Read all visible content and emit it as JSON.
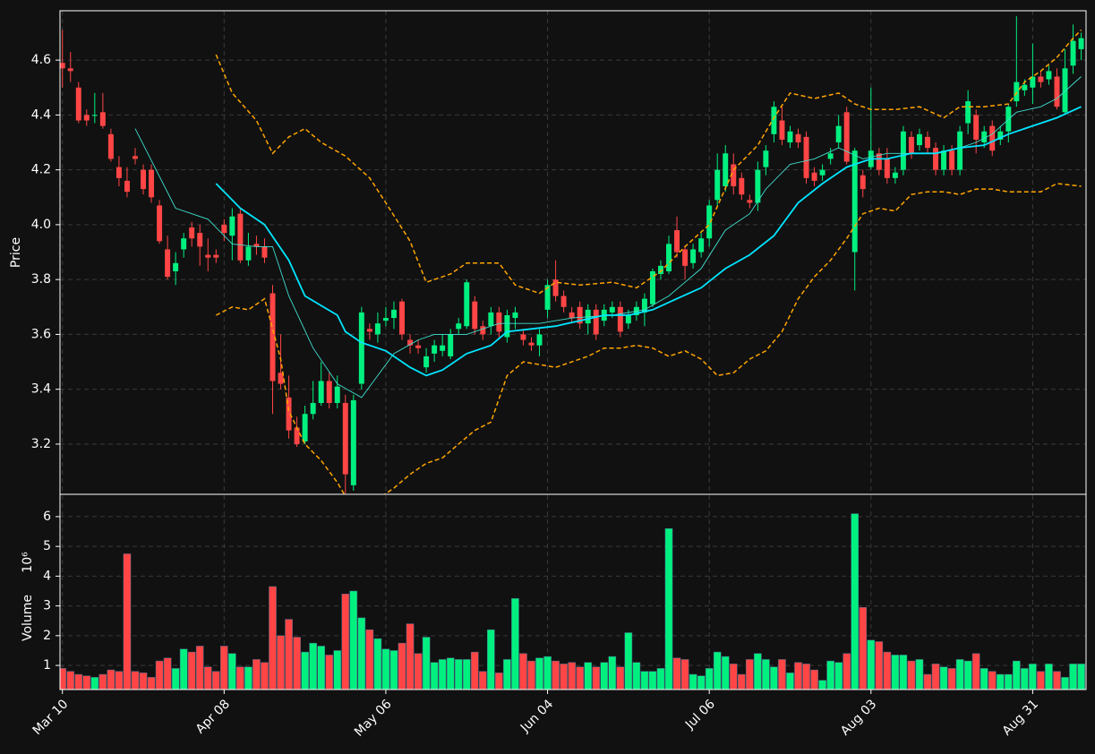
{
  "chart_data": [
    {
      "type": "candlestick",
      "y_label": "Price",
      "up_color": "#00f080",
      "down_color": "#ff4545",
      "grid": true,
      "xlim": [
        -0.3,
        126.6
      ],
      "ylim": [
        3.017,
        4.78
      ],
      "yticks": [
        3.2,
        3.4,
        3.6,
        3.8,
        {
          "value": 4,
          "label": "4.0"
        },
        4.2,
        4.4,
        4.6
      ],
      "open": [
        4.59,
        4.57,
        4.5,
        4.4,
        4.4,
        4.41,
        4.33,
        4.21,
        4.16,
        4.25,
        4.2,
        4.2,
        4.07,
        3.91,
        3.83,
        3.91,
        3.99,
        3.97,
        3.89,
        3.89,
        4.0,
        3.96,
        4.04,
        3.87,
        3.93,
        3.92,
        3.75,
        3.46,
        3.37,
        3.26,
        3.21,
        3.31,
        3.35,
        3.43,
        3.35,
        3.35,
        3.05,
        3.42,
        3.62,
        3.6,
        3.65,
        3.66,
        3.72,
        3.58,
        3.56,
        3.48,
        3.53,
        3.54,
        3.52,
        3.62,
        3.63,
        3.72,
        3.63,
        3.63,
        3.68,
        3.59,
        3.66,
        3.6,
        3.57,
        3.56,
        3.69,
        3.8,
        3.74,
        3.68,
        3.7,
        3.64,
        3.69,
        3.65,
        3.68,
        3.7,
        3.64,
        3.67,
        3.68,
        3.71,
        3.82,
        3.83,
        3.98,
        3.91,
        3.86,
        3.9,
        3.95,
        4.09,
        4.14,
        4.22,
        4.17,
        4.09,
        4.08,
        4.21,
        4.33,
        4.38,
        4.3,
        4.33,
        4.32,
        4.19,
        4.18,
        4.24,
        4.3,
        4.41,
        3.9,
        4.18,
        4.21,
        4.26,
        4.24,
        4.17,
        4.2,
        4.32,
        4.29,
        4.32,
        4.28,
        4.2,
        4.27,
        4.2,
        4.37,
        4.4,
        4.3,
        4.36,
        4.31,
        4.34,
        4.45,
        4.49,
        4.5,
        4.54,
        4.53,
        4.54,
        4.41,
        4.58,
        4.64
      ],
      "high": [
        4.71,
        4.63,
        4.52,
        4.42,
        4.48,
        4.48,
        4.35,
        4.25,
        4.21,
        4.28,
        4.22,
        4.22,
        4.09,
        3.96,
        3.9,
        3.97,
        4.01,
        4.0,
        3.95,
        3.91,
        4.02,
        4.06,
        4.06,
        3.97,
        3.96,
        3.95,
        3.78,
        3.6,
        3.45,
        3.3,
        3.34,
        3.43,
        3.5,
        3.46,
        3.45,
        3.38,
        3.38,
        3.7,
        3.64,
        3.68,
        3.7,
        3.72,
        3.73,
        3.6,
        3.58,
        3.55,
        3.58,
        3.6,
        3.62,
        3.66,
        3.8,
        3.74,
        3.65,
        3.7,
        3.7,
        3.69,
        3.7,
        3.62,
        3.59,
        3.62,
        3.8,
        3.87,
        3.76,
        3.7,
        3.72,
        3.71,
        3.71,
        3.71,
        3.72,
        3.72,
        3.69,
        3.72,
        3.75,
        3.84,
        3.87,
        3.96,
        4.03,
        3.92,
        3.93,
        3.97,
        4.09,
        4.26,
        4.29,
        4.26,
        4.19,
        4.11,
        4.23,
        4.29,
        4.45,
        4.43,
        4.36,
        4.35,
        4.34,
        4.21,
        4.22,
        4.28,
        4.4,
        4.43,
        4.28,
        4.2,
        4.5,
        4.28,
        4.28,
        4.21,
        4.36,
        4.34,
        4.35,
        4.34,
        4.3,
        4.29,
        4.29,
        4.36,
        4.49,
        4.42,
        4.36,
        4.38,
        4.36,
        4.44,
        4.76,
        4.53,
        4.66,
        4.56,
        4.58,
        4.57,
        4.64,
        4.73,
        4.7
      ],
      "low": [
        4.5,
        4.52,
        4.37,
        4.36,
        4.37,
        4.35,
        4.23,
        4.14,
        4.1,
        4.22,
        4.11,
        4.08,
        3.93,
        3.8,
        3.78,
        3.88,
        3.92,
        3.85,
        3.83,
        3.86,
        3.94,
        3.87,
        3.86,
        3.85,
        3.89,
        3.86,
        3.31,
        3.4,
        3.22,
        3.19,
        3.2,
        3.29,
        3.34,
        3.33,
        3.33,
        3.02,
        3.03,
        3.4,
        3.58,
        3.57,
        3.63,
        3.62,
        3.58,
        3.53,
        3.53,
        3.46,
        3.5,
        3.52,
        3.51,
        3.6,
        3.62,
        3.6,
        3.58,
        3.6,
        3.59,
        3.57,
        3.62,
        3.56,
        3.54,
        3.52,
        3.66,
        3.72,
        3.68,
        3.64,
        3.62,
        3.6,
        3.58,
        3.63,
        3.66,
        3.59,
        3.62,
        3.65,
        3.63,
        3.7,
        3.8,
        3.82,
        3.88,
        3.8,
        3.84,
        3.88,
        3.92,
        4.07,
        4.12,
        4.11,
        4.09,
        4.06,
        4.05,
        4.18,
        4.3,
        4.29,
        4.28,
        4.28,
        4.15,
        4.14,
        4.16,
        4.22,
        4.28,
        4.22,
        3.76,
        4.1,
        4.2,
        4.18,
        4.15,
        4.15,
        4.18,
        4.24,
        4.27,
        4.26,
        4.18,
        4.18,
        4.18,
        4.18,
        4.33,
        4.26,
        4.28,
        4.25,
        4.29,
        4.3,
        4.43,
        4.47,
        4.44,
        4.5,
        4.51,
        4.42,
        4.4,
        4.55,
        4.6
      ],
      "close": [
        4.57,
        4.56,
        4.38,
        4.38,
        4.4,
        4.36,
        4.24,
        4.17,
        4.12,
        4.24,
        4.13,
        4.1,
        3.94,
        3.81,
        3.86,
        3.95,
        3.95,
        3.92,
        3.88,
        3.88,
        3.97,
        4.03,
        3.87,
        3.92,
        3.92,
        3.88,
        3.43,
        3.42,
        3.25,
        3.2,
        3.31,
        3.35,
        3.43,
        3.35,
        3.41,
        3.09,
        3.36,
        3.68,
        3.61,
        3.64,
        3.66,
        3.69,
        3.6,
        3.56,
        3.55,
        3.52,
        3.56,
        3.56,
        3.6,
        3.64,
        3.79,
        3.62,
        3.6,
        3.68,
        3.61,
        3.67,
        3.68,
        3.58,
        3.56,
        3.6,
        3.78,
        3.74,
        3.7,
        3.66,
        3.64,
        3.69,
        3.6,
        3.69,
        3.7,
        3.61,
        3.67,
        3.7,
        3.73,
        3.83,
        3.85,
        3.93,
        3.9,
        3.85,
        3.91,
        3.95,
        4.07,
        4.2,
        4.26,
        4.14,
        4.11,
        4.08,
        4.2,
        4.27,
        4.43,
        4.31,
        4.34,
        4.3,
        4.17,
        4.16,
        4.2,
        4.26,
        4.36,
        4.23,
        4.27,
        4.13,
        4.27,
        4.2,
        4.17,
        4.19,
        4.34,
        4.26,
        4.33,
        4.28,
        4.2,
        4.27,
        4.2,
        4.34,
        4.45,
        4.31,
        4.34,
        4.27,
        4.34,
        4.43,
        4.52,
        4.51,
        4.54,
        4.52,
        4.56,
        4.43,
        4.57,
        4.67,
        4.68
      ],
      "overlays": [
        {
          "color": "#ffa500",
          "linewidth": 1.5,
          "linestyle": "dashed",
          "x": [
            19,
            21,
            24,
            26,
            28,
            30,
            32,
            35,
            38,
            40,
            43,
            45,
            48,
            50,
            54,
            56,
            59,
            61,
            64,
            68,
            71,
            74,
            77,
            80,
            83,
            86,
            88,
            90,
            93,
            96,
            98,
            100,
            103,
            106,
            109,
            111,
            114,
            117,
            119,
            121,
            123,
            125,
            126
          ],
          "values": [
            4.62,
            4.48,
            4.38,
            4.26,
            4.32,
            4.35,
            4.3,
            4.25,
            4.17,
            4.08,
            3.94,
            3.79,
            3.82,
            3.86,
            3.86,
            3.78,
            3.75,
            3.79,
            3.78,
            3.79,
            3.77,
            3.83,
            3.92,
            4.0,
            4.2,
            4.29,
            4.39,
            4.48,
            4.46,
            4.48,
            4.44,
            4.42,
            4.42,
            4.43,
            4.39,
            4.43,
            4.43,
            4.44,
            4.52,
            4.56,
            4.61,
            4.68,
            4.71
          ]
        },
        {
          "color": "#ffa500",
          "linewidth": 1.5,
          "linestyle": "dashed",
          "x": [
            19,
            21,
            23,
            25,
            27,
            28,
            30,
            32,
            34,
            35,
            37,
            39,
            41,
            43,
            45,
            47,
            49,
            51,
            53,
            55,
            57,
            59,
            61,
            63,
            65,
            67,
            69,
            71,
            73,
            75,
            77,
            79,
            81,
            83,
            85,
            87,
            89,
            91,
            93,
            95,
            97,
            99,
            101,
            103,
            105,
            107,
            109,
            111,
            113,
            115,
            117,
            119,
            121,
            123,
            126
          ],
          "values": [
            3.67,
            3.7,
            3.69,
            3.73,
            3.51,
            3.32,
            3.2,
            3.14,
            3.06,
            3.01,
            2.93,
            3.0,
            3.04,
            3.09,
            3.13,
            3.15,
            3.2,
            3.25,
            3.28,
            3.45,
            3.5,
            3.49,
            3.48,
            3.5,
            3.52,
            3.55,
            3.55,
            3.56,
            3.55,
            3.52,
            3.54,
            3.51,
            3.45,
            3.46,
            3.51,
            3.54,
            3.61,
            3.73,
            3.81,
            3.87,
            3.95,
            4.04,
            4.06,
            4.05,
            4.11,
            4.12,
            4.12,
            4.11,
            4.13,
            4.13,
            4.12,
            4.12,
            4.12,
            4.15,
            4.14
          ]
        },
        {
          "color": "#40e0d0",
          "linewidth": 0.9,
          "linestyle": "solid",
          "x": [
            9,
            14,
            18,
            21,
            24,
            26,
            28,
            31,
            34,
            37,
            39,
            41,
            44,
            46,
            50,
            54,
            59,
            63,
            68,
            72,
            75,
            79,
            82,
            85,
            87,
            90,
            93,
            96,
            99,
            102,
            105,
            108,
            111,
            113,
            115,
            118,
            121,
            123,
            126
          ],
          "values": [
            4.35,
            4.06,
            4.02,
            3.93,
            3.92,
            3.92,
            3.74,
            3.55,
            3.42,
            3.37,
            3.45,
            3.53,
            3.58,
            3.6,
            3.6,
            3.64,
            3.64,
            3.66,
            3.67,
            3.69,
            3.74,
            3.84,
            3.98,
            4.04,
            4.13,
            4.22,
            4.24,
            4.28,
            4.24,
            4.26,
            4.26,
            4.26,
            4.28,
            4.3,
            4.33,
            4.41,
            4.43,
            4.46,
            4.54
          ]
        },
        {
          "color": "#00e5ff",
          "linewidth": 1.8,
          "linestyle": "solid",
          "x": [
            19,
            22,
            25,
            28,
            30,
            34,
            35,
            37,
            40,
            43,
            45,
            47,
            50,
            53,
            55,
            58,
            61,
            64,
            67,
            70,
            73,
            76,
            79,
            82,
            85,
            88,
            91,
            94,
            97,
            100,
            102,
            105,
            108,
            111,
            114,
            117,
            120,
            123,
            126
          ],
          "values": [
            4.15,
            4.06,
            4.0,
            3.87,
            3.74,
            3.67,
            3.61,
            3.57,
            3.54,
            3.48,
            3.45,
            3.47,
            3.53,
            3.56,
            3.61,
            3.62,
            3.63,
            3.65,
            3.67,
            3.67,
            3.69,
            3.73,
            3.77,
            3.84,
            3.89,
            3.96,
            4.08,
            4.15,
            4.21,
            4.24,
            4.24,
            4.26,
            4.26,
            4.28,
            4.29,
            4.33,
            4.36,
            4.39,
            4.43
          ]
        }
      ]
    },
    {
      "type": "bar",
      "y_label": "Volume",
      "y_label_unit": "10⁶",
      "grid": true,
      "xlim": [
        -0.3,
        126.6
      ],
      "ylim": [
        0.19,
        6.72
      ],
      "yticks": [
        1,
        2,
        3,
        4,
        5,
        6
      ],
      "xticks": [
        {
          "value": 0,
          "label": "Mar 10"
        },
        {
          "value": 20,
          "label": "Apr 08"
        },
        {
          "value": 40,
          "label": "May 06"
        },
        {
          "value": 60,
          "label": "Jun 04"
        },
        {
          "value": 80,
          "label": "Jul 06"
        },
        {
          "value": 100,
          "label": "Aug 03"
        },
        {
          "value": 120,
          "label": "Aug 31"
        }
      ],
      "values": [
        0.9,
        0.8,
        0.7,
        0.65,
        0.6,
        0.7,
        0.85,
        0.8,
        4.75,
        0.8,
        0.75,
        0.6,
        1.15,
        1.25,
        0.9,
        1.55,
        1.45,
        1.65,
        0.95,
        0.8,
        1.65,
        1.4,
        0.95,
        0.95,
        1.2,
        1.1,
        3.65,
        2.0,
        2.55,
        1.95,
        1.45,
        1.75,
        1.65,
        1.35,
        1.5,
        3.4,
        3.5,
        2.6,
        2.2,
        1.9,
        1.55,
        1.5,
        1.75,
        2.4,
        1.4,
        1.95,
        1.1,
        1.2,
        1.25,
        1.2,
        1.2,
        1.45,
        0.8,
        2.2,
        0.75,
        1.2,
        3.25,
        1.4,
        1.15,
        1.25,
        1.3,
        1.15,
        1.05,
        1.1,
        0.95,
        1.1,
        0.95,
        1.1,
        1.3,
        0.95,
        2.1,
        1.1,
        0.8,
        0.8,
        0.9,
        5.6,
        1.25,
        1.2,
        0.7,
        0.65,
        0.9,
        1.45,
        1.3,
        1.05,
        0.7,
        1.2,
        1.4,
        1.2,
        0.95,
        1.2,
        0.75,
        1.1,
        1.05,
        0.85,
        0.5,
        1.15,
        1.1,
        1.4,
        6.1,
        2.95,
        1.85,
        1.8,
        1.45,
        1.35,
        1.35,
        1.15,
        1.2,
        0.7,
        1.05,
        0.95,
        0.9,
        1.2,
        1.15,
        1.4,
        0.9,
        0.8,
        0.7,
        0.7,
        1.15,
        0.9,
        1.05,
        0.8,
        1.05,
        0.8,
        0.6,
        1.05,
        1.05
      ]
    }
  ]
}
